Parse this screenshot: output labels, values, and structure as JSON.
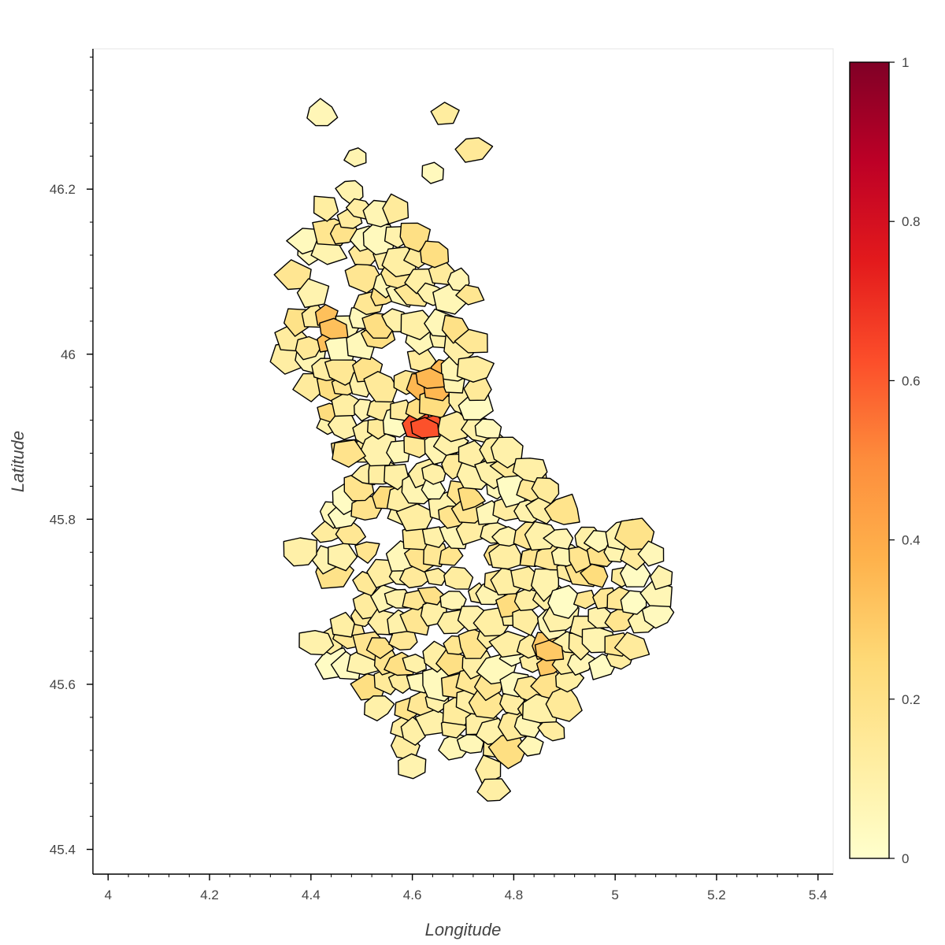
{
  "map": {
    "xlabel": "Longitude",
    "ylabel": "Latitude",
    "xlim": [
      3.97,
      5.43
    ],
    "ylim": [
      45.37,
      46.37
    ],
    "x_ticks": [
      {
        "value": 4,
        "label": "4"
      },
      {
        "value": 4.2,
        "label": "4.2"
      },
      {
        "value": 4.4,
        "label": "4.4"
      },
      {
        "value": 4.6,
        "label": "4.6"
      },
      {
        "value": 4.8,
        "label": "4.8"
      },
      {
        "value": 5,
        "label": "5"
      },
      {
        "value": 5.2,
        "label": "5.2"
      },
      {
        "value": 5.4,
        "label": "5.4"
      }
    ],
    "y_ticks": [
      {
        "value": 45.4,
        "label": "45.4"
      },
      {
        "value": 45.6,
        "label": "45.6"
      },
      {
        "value": 45.8,
        "label": "45.8"
      },
      {
        "value": 46,
        "label": "46"
      },
      {
        "value": 46.2,
        "label": "46.2"
      }
    ],
    "colorbar": {
      "range": [
        0,
        1
      ],
      "palette": [
        "#ffffcc",
        "#ffeda0",
        "#fed976",
        "#feb24c",
        "#fd8d3c",
        "#fc4e2a",
        "#e31a1c",
        "#bd0026",
        "#800026"
      ],
      "ticks": [
        {
          "value": 0,
          "label": "0"
        },
        {
          "value": 0.2,
          "label": "0.2"
        },
        {
          "value": 0.4,
          "label": "0.4"
        },
        {
          "value": 0.6,
          "label": "0.6"
        },
        {
          "value": 0.8,
          "label": "0.8"
        },
        {
          "value": 1,
          "label": "1"
        }
      ]
    },
    "highlighted_regions": [
      {
        "lon": 4.625,
        "lat": 45.91,
        "value": 0.62
      },
      {
        "lon": 4.445,
        "lat": 46.03,
        "value": 0.33
      },
      {
        "lon": 4.635,
        "lat": 45.97,
        "value": 0.36
      },
      {
        "lon": 4.87,
        "lat": 45.64,
        "value": 0.3
      }
    ]
  }
}
